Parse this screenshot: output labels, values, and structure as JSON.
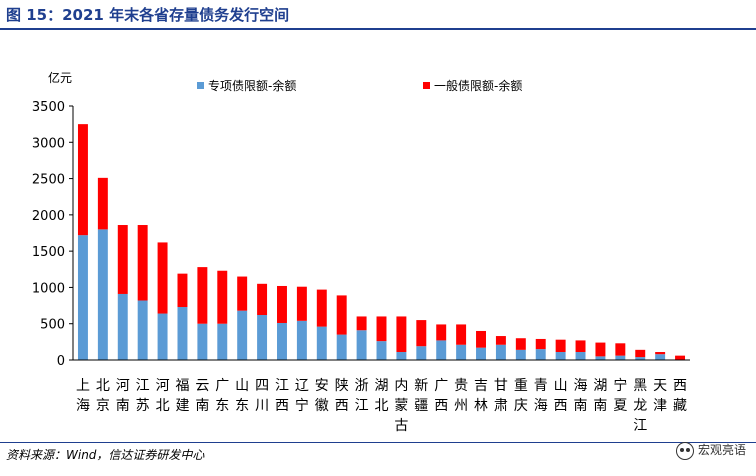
{
  "header": {
    "title": "图 15：2021 年末各省存量债务发行空间"
  },
  "footer": {
    "source": "资料来源：Wind，信达证券研发中心",
    "watermark": "宏观亮语"
  },
  "colors": {
    "series1": "#5b9bd5",
    "series2": "#ff0000",
    "title": "#1f3f8f"
  },
  "chart_data": {
    "type": "bar",
    "stacked": true,
    "ylabel": "亿元",
    "ylim": [
      0,
      3500
    ],
    "yticks": [
      0,
      500,
      1000,
      1500,
      2000,
      2500,
      3000,
      3500
    ],
    "legend_position": "top",
    "grid": false,
    "categories": [
      "上海",
      "北京",
      "河南",
      "江苏",
      "河北",
      "福建",
      "云南",
      "广东",
      "山东",
      "四川",
      "江西",
      "辽宁",
      "安徽",
      "陕西",
      "浙江",
      "湖北",
      "内蒙古",
      "新疆",
      "广西",
      "贵州",
      "吉林",
      "甘肃",
      "重庆",
      "青海",
      "山西",
      "海南",
      "湖南",
      "宁夏",
      "黑龙江",
      "天津",
      "西藏"
    ],
    "series": [
      {
        "name": "专项债限额-余额",
        "values": [
          1720,
          1800,
          910,
          820,
          640,
          730,
          500,
          500,
          680,
          620,
          510,
          540,
          460,
          350,
          410,
          260,
          110,
          190,
          270,
          210,
          170,
          210,
          140,
          150,
          110,
          110,
          50,
          60,
          40,
          80,
          0
        ]
      },
      {
        "name": "一般债限额-余额",
        "values": [
          1530,
          710,
          950,
          1040,
          980,
          460,
          780,
          730,
          470,
          430,
          510,
          470,
          510,
          540,
          190,
          340,
          490,
          360,
          220,
          280,
          230,
          120,
          160,
          140,
          170,
          160,
          190,
          170,
          100,
          30,
          60
        ]
      }
    ]
  }
}
